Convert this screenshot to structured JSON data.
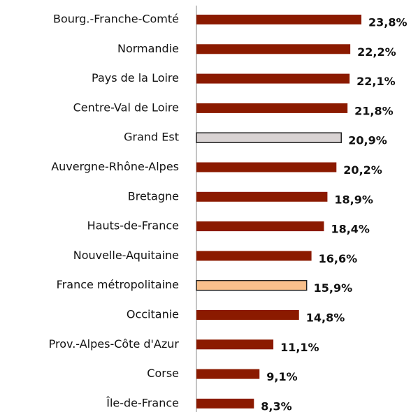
{
  "chart_data": {
    "type": "hbar",
    "categories": [
      "Bourg.-Franche-Comté",
      "Normandie",
      "Pays de la Loire",
      "Centre-Val de Loire",
      "Grand Est",
      "Auvergne-Rhône-Alpes",
      "Bretagne",
      "Hauts-de-France",
      "Nouvelle-Aquitaine",
      "France métropolitaine",
      "Occitanie",
      "Prov.-Alpes-Côte d'Azur",
      "Corse",
      "Île-de-France"
    ],
    "values": [
      23.8,
      22.2,
      22.1,
      21.8,
      20.9,
      20.2,
      18.9,
      18.4,
      16.6,
      15.9,
      14.8,
      11.1,
      9.1,
      8.3
    ],
    "value_labels": [
      "23,8%",
      "22,2%",
      "22,1%",
      "21,8%",
      "20,9%",
      "20,2%",
      "18,9%",
      "18,4%",
      "16,6%",
      "15,9%",
      "14,8%",
      "11,1%",
      "9,1%",
      "8,3%"
    ],
    "colors": [
      "#8b1a00",
      "#8b1a00",
      "#8b1a00",
      "#8b1a00",
      "#d9d3d3",
      "#8b1a00",
      "#8b1a00",
      "#8b1a00",
      "#8b1a00",
      "#f9c08c",
      "#8b1a00",
      "#8b1a00",
      "#8b1a00",
      "#8b1a00"
    ]
  }
}
